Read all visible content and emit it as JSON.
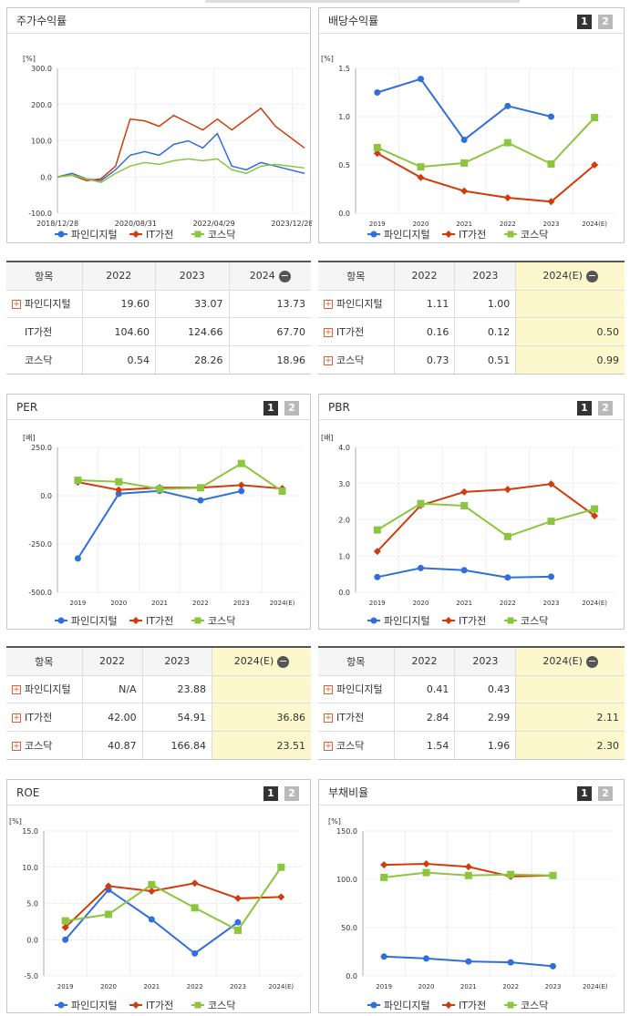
{
  "colors": {
    "s1": "#2f6fdc",
    "s2": "#d03c0c",
    "s3": "#8cc63e"
  },
  "legend": [
    "파인디지털",
    "IT가전",
    "코스닥"
  ],
  "toggles": [
    "1",
    "2"
  ],
  "charts": {
    "stock": {
      "title": "주가수익률",
      "unit": "[%]",
      "y_ticks": [
        "300.0",
        "200.0",
        "100.0",
        "0.0",
        "-100.0"
      ],
      "x_ticks": [
        "2018/12/28",
        "2020/08/31",
        "2022/04/29",
        "2023/12/28"
      ]
    },
    "div": {
      "title": "배당수익률",
      "unit": "[%]",
      "y_ticks": [
        "1.5",
        "1.0",
        "0.5",
        "0.0"
      ],
      "x_ticks": [
        "2019",
        "2020",
        "2021",
        "2022",
        "2023",
        "2024(E)"
      ]
    },
    "per": {
      "title": "PER",
      "unit": "[배]",
      "y_ticks": [
        "250.0",
        "0.0",
        "-250.0",
        "-500.0"
      ],
      "x_ticks": [
        "2019",
        "2020",
        "2021",
        "2022",
        "2023",
        "2024(E)"
      ]
    },
    "pbr": {
      "title": "PBR",
      "unit": "[배]",
      "y_ticks": [
        "4.0",
        "3.0",
        "2.0",
        "1.0",
        "0.0"
      ],
      "x_ticks": [
        "2019",
        "2020",
        "2021",
        "2022",
        "2023",
        "2024(E)"
      ]
    },
    "roe": {
      "title": "ROE",
      "unit": "[%]",
      "y_ticks": [
        "15.0",
        "10.0",
        "5.0",
        "0.0",
        "-5.0"
      ],
      "x_ticks": [
        "2019",
        "2020",
        "2021",
        "2022",
        "2023",
        "2024(E)"
      ]
    },
    "debt": {
      "title": "부채비율",
      "unit": "[%]",
      "y_ticks": [
        "150.0",
        "100.0",
        "50.0",
        "0.0"
      ],
      "x_ticks": [
        "2019",
        "2020",
        "2021",
        "2022",
        "2023",
        "2024(E)"
      ]
    }
  },
  "chart_data": [
    {
      "id": "stock",
      "type": "line",
      "ylim": [
        -100,
        300
      ],
      "x": [
        "2018/12/28",
        "2019/06",
        "2019/12",
        "2020/03",
        "2020/06",
        "2020/08/31",
        "2020/12",
        "2021/03",
        "2021/06",
        "2021/09",
        "2021/12",
        "2022/04/29",
        "2022/08",
        "2022/12",
        "2023/04",
        "2023/08",
        "2023/12/28",
        "2024/03"
      ],
      "series": [
        {
          "name": "파인디지털",
          "values": [
            0,
            10,
            -5,
            -10,
            20,
            60,
            70,
            60,
            90,
            100,
            80,
            120,
            30,
            20,
            40,
            30,
            20,
            10
          ]
        },
        {
          "name": "IT가전",
          "values": [
            0,
            5,
            -10,
            -5,
            30,
            160,
            155,
            140,
            170,
            150,
            130,
            160,
            130,
            160,
            190,
            140,
            110,
            80
          ]
        },
        {
          "name": "코스닥",
          "values": [
            0,
            5,
            -5,
            -15,
            10,
            30,
            40,
            35,
            45,
            50,
            45,
            50,
            20,
            10,
            30,
            35,
            30,
            25
          ]
        }
      ]
    },
    {
      "id": "div",
      "type": "line",
      "ylim": [
        0,
        1.5
      ],
      "categories": [
        "2019",
        "2020",
        "2021",
        "2022",
        "2023",
        "2024(E)"
      ],
      "series": [
        {
          "name": "파인디지털",
          "values": [
            1.25,
            1.39,
            0.76,
            1.11,
            1.0,
            null
          ]
        },
        {
          "name": "IT가전",
          "values": [
            0.62,
            0.37,
            0.23,
            0.16,
            0.12,
            0.5
          ]
        },
        {
          "name": "코스닥",
          "values": [
            0.68,
            0.48,
            0.52,
            0.73,
            0.51,
            0.99
          ]
        }
      ]
    },
    {
      "id": "per",
      "type": "line",
      "ylim": [
        -500,
        250
      ],
      "categories": [
        "2019",
        "2020",
        "2021",
        "2022",
        "2023",
        "2024(E)"
      ],
      "series": [
        {
          "name": "파인디지털",
          "values": [
            -325,
            10,
            25,
            -23.88,
            23.88,
            null
          ]
        },
        {
          "name": "IT가전",
          "values": [
            70,
            30,
            42,
            42.0,
            54.91,
            36.86
          ]
        },
        {
          "name": "코스닥",
          "values": [
            80,
            72,
            35,
            40.87,
            166.84,
            23.51
          ]
        }
      ]
    },
    {
      "id": "pbr",
      "type": "line",
      "ylim": [
        0,
        4
      ],
      "categories": [
        "2019",
        "2020",
        "2021",
        "2022",
        "2023",
        "2024(E)"
      ],
      "series": [
        {
          "name": "파인디지털",
          "values": [
            0.42,
            0.67,
            0.61,
            0.41,
            0.43,
            null
          ]
        },
        {
          "name": "IT가전",
          "values": [
            1.13,
            2.4,
            2.77,
            2.84,
            2.99,
            2.11
          ]
        },
        {
          "name": "코스닥",
          "values": [
            1.72,
            2.45,
            2.39,
            1.54,
            1.96,
            2.3
          ]
        }
      ]
    },
    {
      "id": "roe",
      "type": "line",
      "ylim": [
        -5,
        15
      ],
      "categories": [
        "2019",
        "2020",
        "2021",
        "2022",
        "2023",
        "2024(E)"
      ],
      "series": [
        {
          "name": "파인디지털",
          "values": [
            0,
            6.9,
            2.8,
            -1.9,
            2.4,
            null
          ]
        },
        {
          "name": "IT가전",
          "values": [
            1.7,
            7.4,
            6.7,
            7.8,
            5.7,
            5.9
          ]
        },
        {
          "name": "코스닥",
          "values": [
            2.6,
            3.5,
            7.6,
            4.4,
            1.3,
            10.0
          ]
        }
      ]
    },
    {
      "id": "debt",
      "type": "line",
      "ylim": [
        0,
        150
      ],
      "categories": [
        "2019",
        "2020",
        "2021",
        "2022",
        "2023",
        "2024(E)"
      ],
      "series": [
        {
          "name": "파인디지털",
          "values": [
            20,
            18,
            15,
            14,
            10,
            null
          ]
        },
        {
          "name": "IT가전",
          "values": [
            115,
            116,
            113,
            103,
            104,
            null
          ]
        },
        {
          "name": "코스닥",
          "values": [
            102,
            107,
            104,
            105,
            104,
            null
          ]
        }
      ]
    }
  ],
  "tables": {
    "stock": {
      "head": [
        "항목",
        "2022",
        "2023",
        "2024"
      ],
      "rows": [
        [
          "파인디지털",
          "19.60",
          "33.07",
          "13.73"
        ],
        [
          "IT가전",
          "104.60",
          "124.66",
          "67.70"
        ],
        [
          "코스닥",
          "0.54",
          "28.26",
          "18.96"
        ]
      ],
      "plus": [
        true,
        false,
        false
      ],
      "est": false
    },
    "div": {
      "head": [
        "항목",
        "2022",
        "2023",
        "2024(E)"
      ],
      "rows": [
        [
          "파인디지털",
          "1.11",
          "1.00",
          ""
        ],
        [
          "IT가전",
          "0.16",
          "0.12",
          "0.50"
        ],
        [
          "코스닥",
          "0.73",
          "0.51",
          "0.99"
        ]
      ],
      "plus": [
        true,
        true,
        true
      ],
      "est": true
    },
    "per": {
      "head": [
        "항목",
        "2022",
        "2023",
        "2024(E)"
      ],
      "rows": [
        [
          "파인디지털",
          "N/A",
          "23.88",
          ""
        ],
        [
          "IT가전",
          "42.00",
          "54.91",
          "36.86"
        ],
        [
          "코스닥",
          "40.87",
          "166.84",
          "23.51"
        ]
      ],
      "plus": [
        true,
        true,
        true
      ],
      "est": true
    },
    "pbr": {
      "head": [
        "항목",
        "2022",
        "2023",
        "2024(E)"
      ],
      "rows": [
        [
          "파인디지털",
          "0.41",
          "0.43",
          ""
        ],
        [
          "IT가전",
          "2.84",
          "2.99",
          "2.11"
        ],
        [
          "코스닥",
          "1.54",
          "1.96",
          "2.30"
        ]
      ],
      "plus": [
        true,
        true,
        true
      ],
      "est": true
    }
  }
}
